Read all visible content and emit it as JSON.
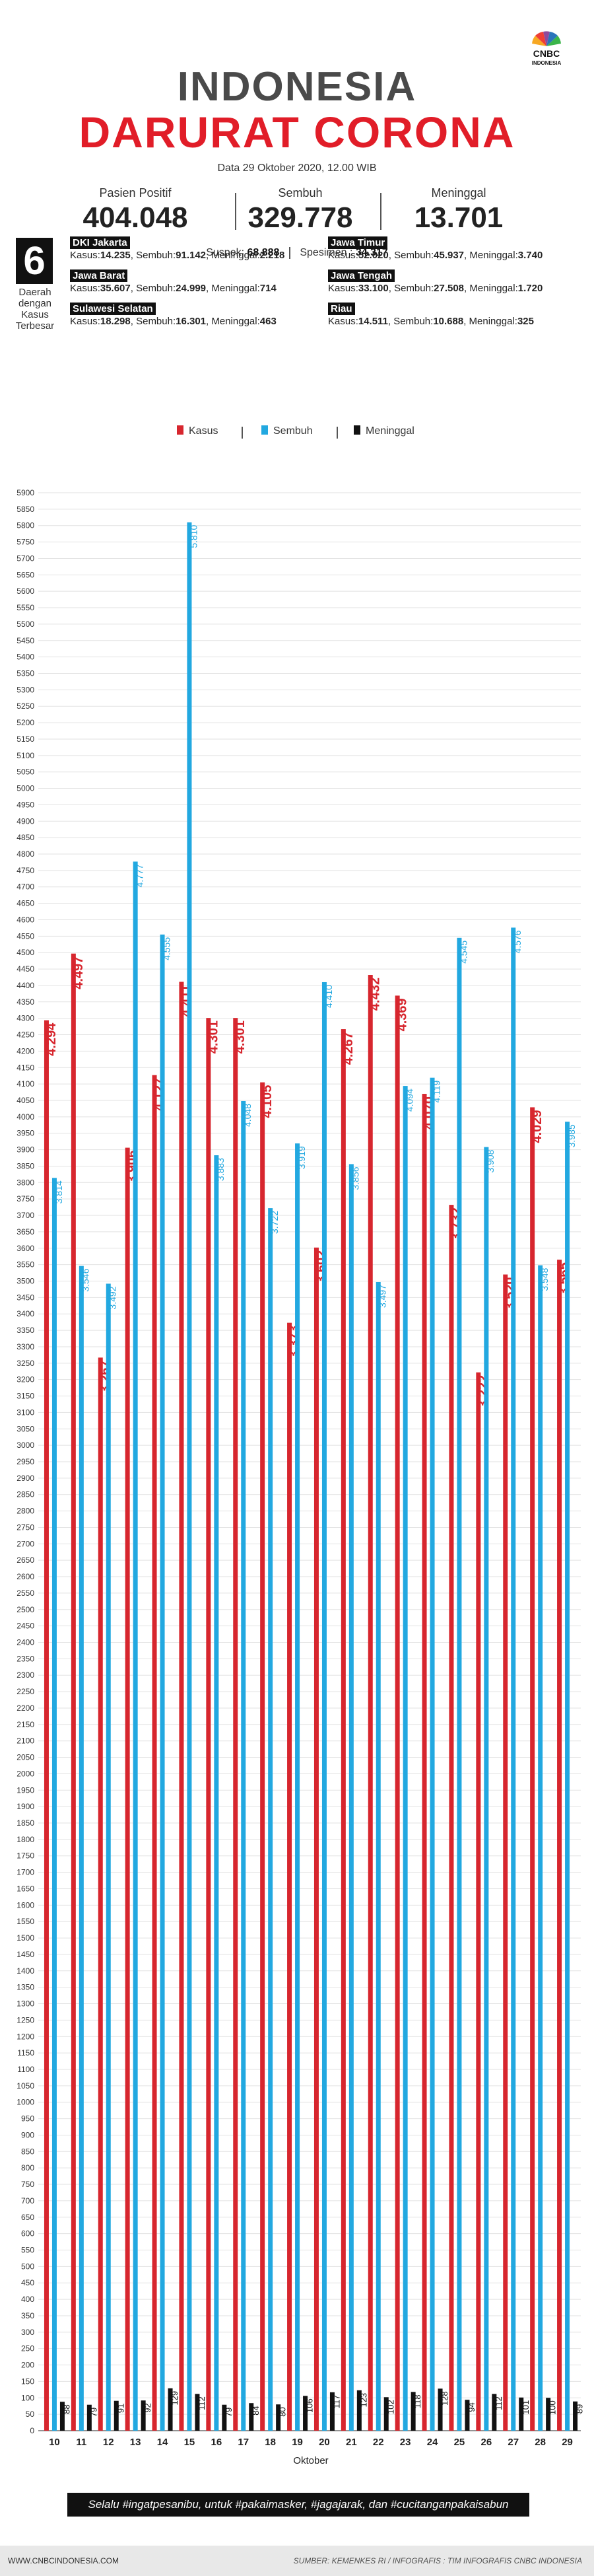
{
  "brand": {
    "line1": "CNBC",
    "line2": "INDONESIA"
  },
  "header": {
    "title_line1": "INDONESIA",
    "title_line2": "DARURAT CORONA",
    "date": "Data 29 Oktober 2020, 12.00 WIB"
  },
  "stats": [
    {
      "label": "Pasien Positif",
      "value": "404.048"
    },
    {
      "label": "Sembuh",
      "value": "329.778"
    },
    {
      "label": "Meninggal",
      "value": "13.701"
    }
  ],
  "substats": {
    "suspek_label": "Suspek: ",
    "suspek_value": "68.888",
    "spesimen_label": "Spesimen : ",
    "spesimen_value": "34.317"
  },
  "top_regions": {
    "number": "6",
    "caption": "Daerah dengan Kasus Terbesar",
    "regions": [
      {
        "name": "DKI Jakarta",
        "kasus": "14.235",
        "sembuh": "91.142",
        "meninggal": "2.218"
      },
      {
        "name": "Jawa Timur",
        "kasus": "52.020",
        "sembuh": "45.937",
        "meninggal": "3.740"
      },
      {
        "name": "Jawa Barat",
        "kasus": "35.607",
        "sembuh": "24.999",
        "meninggal": "714"
      },
      {
        "name": "Jawa Tengah",
        "kasus": "33.100",
        "sembuh": "27.508",
        "meninggal": "1.720"
      },
      {
        "name": "Sulawesi Selatan",
        "kasus": "18.298",
        "sembuh": "16.301",
        "meninggal": "463"
      },
      {
        "name": "Riau",
        "kasus": "14.511",
        "sembuh": "10.688",
        "meninggal": "325"
      }
    ],
    "labels": {
      "kasus": "Kasus:",
      "sembuh": "Sembuh:",
      "meninggal": "Meninggal:"
    }
  },
  "chart_data": {
    "type": "bar",
    "xlabel": "Oktober",
    "ylabel": "",
    "ylim": [
      0,
      5900
    ],
    "ytick_step": 50,
    "grid": true,
    "legend_position": "top",
    "categories": [
      "10",
      "11",
      "12",
      "13",
      "14",
      "15",
      "16",
      "17",
      "18",
      "19",
      "20",
      "21",
      "22",
      "23",
      "24",
      "25",
      "26",
      "27",
      "28",
      "29"
    ],
    "series": [
      {
        "name": "Kasus",
        "color": "#d7262e",
        "values": [
          4294,
          4497,
          3267,
          3906,
          4127,
          4411,
          4301,
          4301,
          4105,
          3373,
          3602,
          4267,
          4432,
          4369,
          4070,
          3732,
          3222,
          3520,
          4029,
          3565
        ],
        "labels": [
          "4.294",
          "4.497",
          "3.267",
          "3.906",
          "4.127",
          "4.411",
          "4.301",
          "4.301",
          "4.105",
          "3.373",
          "3.602",
          "4.267",
          "4.432",
          "4.369",
          "4.070",
          "3.732",
          "3.222",
          "3.520",
          "4.029",
          "3.565"
        ]
      },
      {
        "name": "Sembuh",
        "color": "#22a8e0",
        "values": [
          3814,
          3546,
          3492,
          4777,
          4555,
          5810,
          3883,
          4048,
          3722,
          3919,
          4410,
          3856,
          3497,
          4094,
          4119,
          4545,
          3908,
          4576,
          3548,
          3985
        ],
        "labels": [
          "3.814",
          "3.546",
          "3.492",
          "4.777",
          "4.555",
          "5.810",
          "3.883",
          "4.048",
          "3.722",
          "3.919",
          "4.410",
          "3.856",
          "3.497",
          "4.094",
          "4.119",
          "4.545",
          "3.908",
          "4.576",
          "3.548",
          "3.985"
        ]
      },
      {
        "name": "Meninggal",
        "color": "#111111",
        "values": [
          88,
          79,
          91,
          92,
          129,
          112,
          79,
          84,
          80,
          106,
          117,
          123,
          102,
          118,
          128,
          94,
          112,
          101,
          100,
          89
        ],
        "labels": [
          "88",
          "79",
          "91",
          "92",
          "129",
          "112",
          "79",
          "84",
          "80",
          "106",
          "117",
          "123",
          "102",
          "118",
          "128",
          "94",
          "112",
          "101",
          "100",
          "89"
        ]
      }
    ]
  },
  "banner": "Selalu #ingatpesanibu, untuk #pakaimasker, #jagajarak, dan #cucitanganpakaisabun",
  "footer": {
    "site": "WWW.CNBCINDONESIA.COM",
    "source": "SUMBER: KEMENKES RI / INFOGRAFIS : TIM INFOGRAFIS CNBC INDONESIA"
  }
}
